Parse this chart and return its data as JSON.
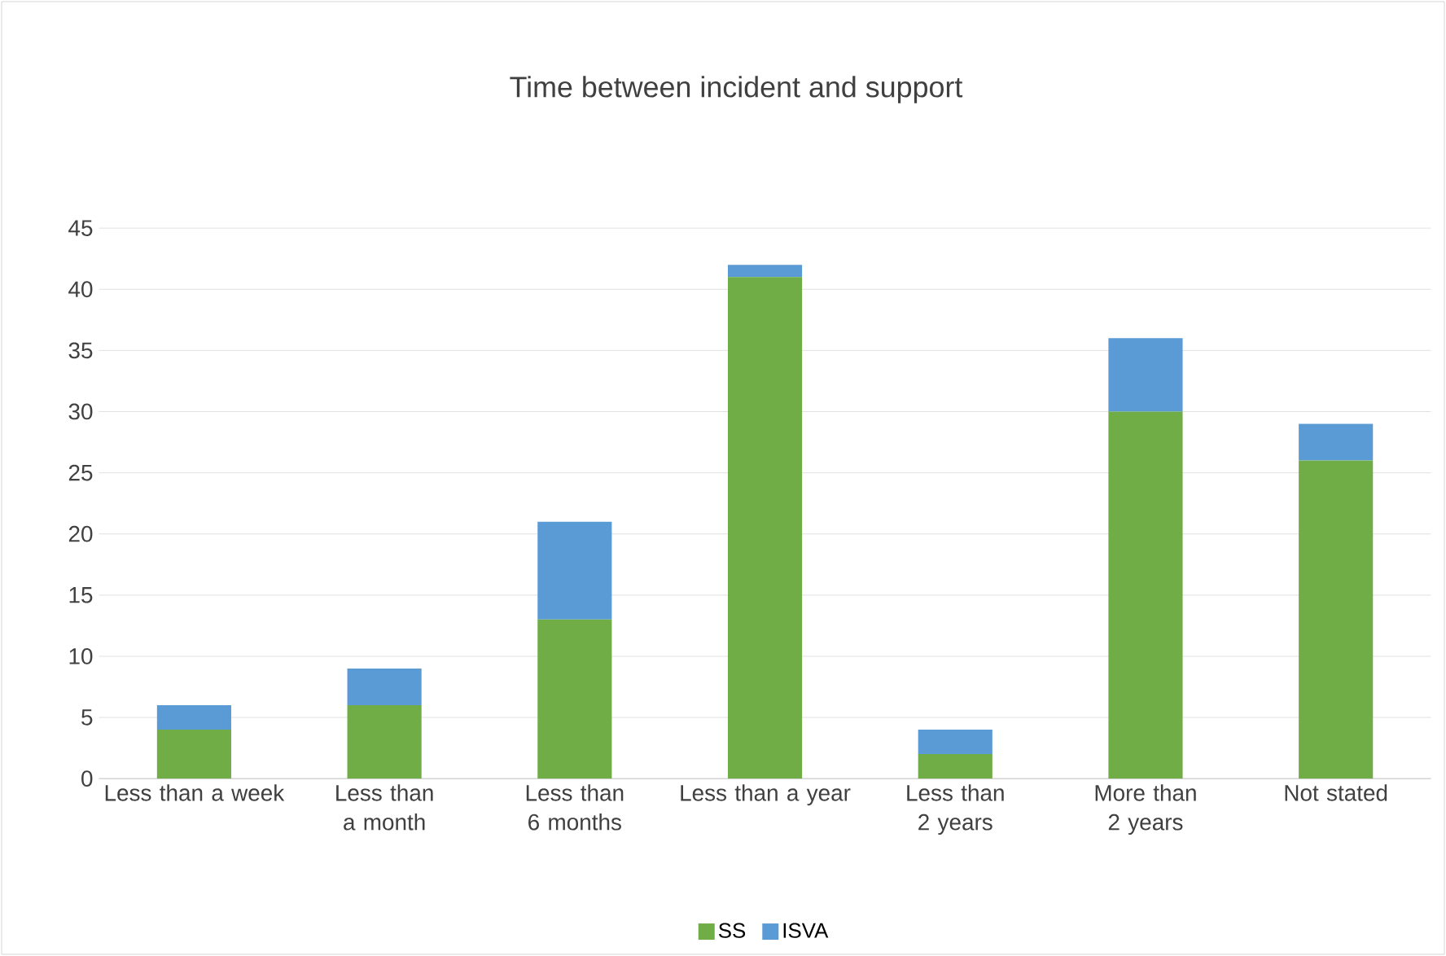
{
  "chart_data": {
    "type": "bar",
    "title": "Time between incident and support",
    "categories": [
      "Less than a week",
      "Less than a month",
      "Less than 6 months",
      "Less than a year",
      "Less than 2 years",
      "More than 2 years",
      "Not stated"
    ],
    "series": [
      {
        "name": "SS",
        "color": "#70ad47",
        "values": [
          4,
          6,
          13,
          41,
          2,
          30,
          26
        ]
      },
      {
        "name": "ISVA",
        "color": "#5b9bd5",
        "values": [
          2,
          3,
          8,
          1,
          2,
          6,
          3
        ]
      }
    ],
    "stacked": true,
    "ylim": [
      0,
      45
    ],
    "yticks": [
      0,
      5,
      10,
      15,
      20,
      25,
      30,
      35,
      40,
      45
    ],
    "grid": "y",
    "legend": "bottom"
  }
}
